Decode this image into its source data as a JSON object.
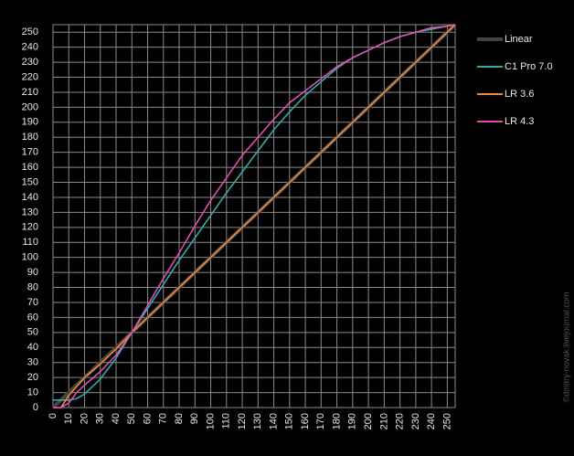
{
  "chart_data": {
    "type": "line",
    "x": [
      0,
      5,
      10,
      15,
      20,
      30,
      40,
      50,
      60,
      70,
      80,
      90,
      100,
      110,
      120,
      130,
      140,
      150,
      160,
      170,
      180,
      190,
      200,
      210,
      220,
      230,
      240,
      250,
      255
    ],
    "series": [
      {
        "name": "Linear",
        "color": "#444444",
        "values": [
          0,
          5,
          10,
          15,
          20,
          30,
          40,
          50,
          60,
          70,
          80,
          90,
          100,
          110,
          120,
          130,
          140,
          150,
          160,
          170,
          180,
          190,
          200,
          210,
          220,
          230,
          240,
          250,
          255
        ]
      },
      {
        "name": "C1 Pro 7.0",
        "color": "#3aa8a8",
        "values": [
          5,
          5,
          5,
          6,
          9,
          19,
          33,
          50,
          66,
          82,
          98,
          113,
          128,
          143,
          157,
          171,
          185,
          197,
          208,
          217,
          226,
          233,
          238,
          243,
          247,
          250,
          252,
          254,
          255
        ]
      },
      {
        "name": "LR 3.6",
        "color": "#f08a3c",
        "values": [
          0,
          0,
          8,
          14,
          20,
          29,
          39,
          50,
          60,
          70,
          80,
          90,
          100,
          110,
          120,
          130,
          140,
          150,
          160,
          170,
          180,
          190,
          200,
          210,
          220,
          230,
          240,
          250,
          255
        ]
      },
      {
        "name": "LR 4.3",
        "color": "#e04fb0",
        "values": [
          0,
          0,
          3,
          10,
          15,
          24,
          35,
          50,
          68,
          86,
          103,
          121,
          138,
          153,
          168,
          180,
          192,
          203,
          211,
          219,
          227,
          233,
          238,
          243,
          247,
          250,
          253,
          254,
          255
        ]
      }
    ],
    "xlim": [
      0,
      255
    ],
    "ylim": [
      0,
      255
    ],
    "xticks": [
      0,
      10,
      20,
      30,
      40,
      50,
      60,
      70,
      80,
      90,
      100,
      110,
      120,
      130,
      140,
      150,
      160,
      170,
      180,
      190,
      200,
      210,
      220,
      230,
      240,
      250
    ],
    "yticks": [
      0,
      10,
      20,
      30,
      40,
      50,
      60,
      70,
      80,
      90,
      100,
      110,
      120,
      130,
      140,
      150,
      160,
      170,
      180,
      190,
      200,
      210,
      220,
      230,
      240,
      250
    ],
    "grid": true,
    "legend": "right",
    "watermark": "©dmitry-novak.livejournal.com"
  }
}
